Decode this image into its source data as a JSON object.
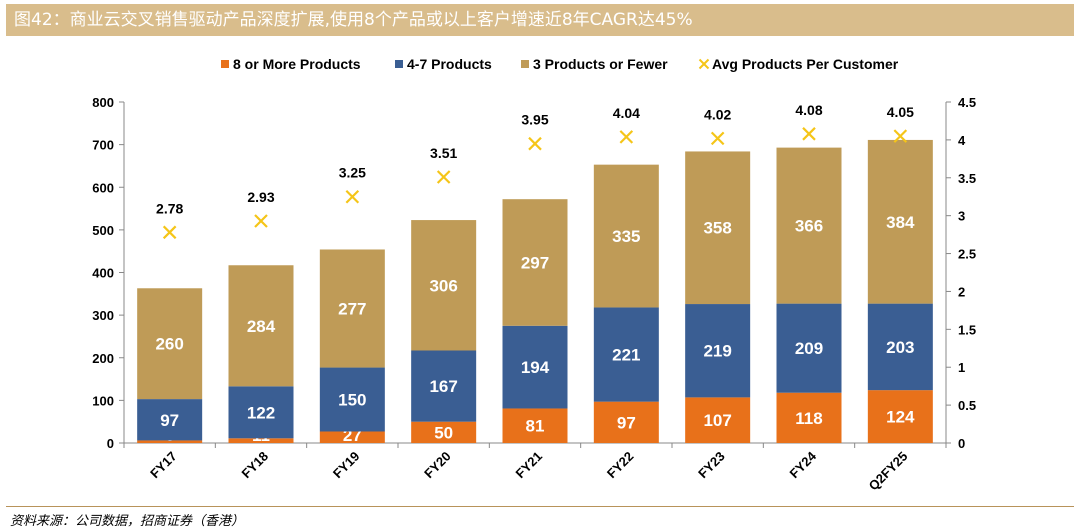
{
  "figure_title": "图42：商业云交叉销售驱动产品深度扩展,使用8个产品或以上客户增速近8年CAGR达45%",
  "source_note": "资料来源：公司数据，招商证券（香港）",
  "colors": {
    "title_bg": "#d9bd8c",
    "series_8_or_more": "#e8711a",
    "series_4_7": "#3a5e93",
    "series_3_or_fewer": "#bf9b57",
    "avg_marker": "#f5c518"
  },
  "chart_data": {
    "type": "bar",
    "stacked": true,
    "categories": [
      "FY17",
      "FY18",
      "FY19",
      "FY20",
      "FY21",
      "FY22",
      "FY23",
      "FY24",
      "Q2FY25"
    ],
    "series": [
      {
        "name": "8 or More Products",
        "values": [
          6,
          11,
          27,
          50,
          81,
          97,
          107,
          118,
          124
        ],
        "color": "#e8711a"
      },
      {
        "name": "4-7 Products",
        "values": [
          97,
          122,
          150,
          167,
          194,
          221,
          219,
          209,
          203
        ],
        "color": "#3a5e93"
      },
      {
        "name": "3 Products or Fewer",
        "values": [
          260,
          284,
          277,
          306,
          297,
          335,
          358,
          366,
          384
        ],
        "color": "#bf9b57"
      }
    ],
    "secondary_series": {
      "name": "Avg Products Per Customer",
      "type": "scatter",
      "marker": "x",
      "values": [
        2.78,
        2.93,
        3.25,
        3.51,
        3.95,
        4.04,
        4.02,
        4.08,
        4.05
      ],
      "labels": [
        "2.78",
        "2.93",
        "3.25",
        "3.51",
        "3.95",
        "4.04",
        "4.02",
        "4.08",
        "4.05"
      ],
      "color": "#f5c518"
    },
    "ylim": [
      0,
      800
    ],
    "yticks": [
      "0",
      "100",
      "200",
      "300",
      "400",
      "500",
      "600",
      "700",
      "800"
    ],
    "y2lim": [
      0,
      4.5
    ],
    "y2ticks": [
      "0",
      "0.5",
      "1",
      "1.5",
      "2",
      "2.5",
      "3",
      "3.5",
      "4",
      "4.5"
    ],
    "legend_position": "top",
    "grid": false
  }
}
